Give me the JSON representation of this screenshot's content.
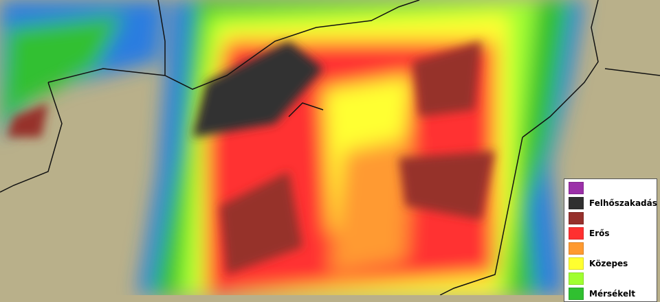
{
  "legend": {
    "items": [
      {
        "color": "#9b30a8",
        "label": ""
      },
      {
        "color": "#303030",
        "label": "Felhőszakadás"
      },
      {
        "color": "#96302c",
        "label": ""
      },
      {
        "color": "#ff3030",
        "label": "Erős"
      },
      {
        "color": "#ff9a30",
        "label": ""
      },
      {
        "color": "#ffff30",
        "label": "Közepes"
      },
      {
        "color": "#a0ff30",
        "label": ""
      },
      {
        "color": "#30c030",
        "label": "Mérsékelt"
      }
    ]
  },
  "colors": {
    "terrain": "#b9b08a",
    "water": "#4a8fd0",
    "border": "#111111"
  }
}
